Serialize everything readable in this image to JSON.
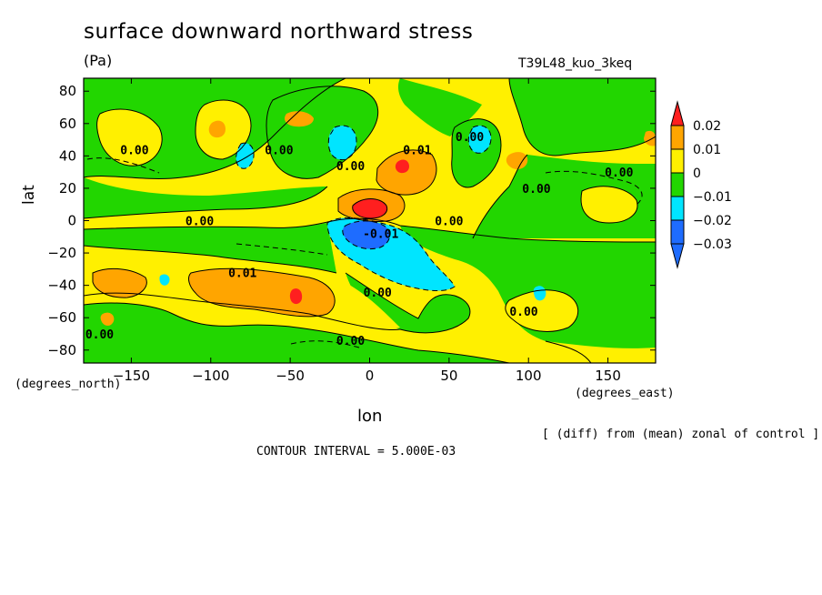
{
  "header": {
    "title": "surface downward northward stress",
    "units": "(Pa)",
    "run_name": "T39L48_kuo_3keq"
  },
  "footer": {
    "contour_interval": "CONTOUR INTERVAL = 5.000E-03",
    "note": "[ (diff) from (mean) zonal of control ]"
  },
  "chart_data": {
    "type": "heatmap",
    "title": "surface downward northward stress",
    "subtitle": "(Pa)",
    "xlabel": "lon",
    "ylabel": "lat",
    "x_unit_label": "(degrees_east)",
    "y_unit_label": "(degrees_north)",
    "xlim": [
      -180,
      180
    ],
    "ylim": [
      -88,
      88
    ],
    "x_ticks": [
      -150,
      -100,
      -50,
      0,
      50,
      100,
      150
    ],
    "x_tick_labels": [
      "−150",
      "−100",
      "−50",
      "0",
      "50",
      "100",
      "150"
    ],
    "y_ticks": [
      80,
      60,
      40,
      20,
      0,
      -20,
      -40,
      -60,
      -80
    ],
    "y_tick_labels": [
      "80",
      "60",
      "40",
      "20",
      "0",
      "−20",
      "−40",
      "−60",
      "−80"
    ],
    "colorbar": {
      "levels": [
        -0.03,
        -0.02,
        -0.01,
        0,
        0.01,
        0.02
      ],
      "labels": [
        "−0.03",
        "−0.02",
        "−0.01",
        "0",
        "0.01",
        "0.02"
      ],
      "colors": [
        "#1e6cff",
        "#00e5ff",
        "#22d600",
        "#fff000",
        "#ffa500",
        "#ff1f1f"
      ],
      "bins": [
        {
          "range": "< -0.03",
          "color": "#1e6cff"
        },
        {
          "range": "-0.03 to -0.02",
          "color": "#1e6cff"
        },
        {
          "range": "-0.02 to -0.01",
          "color": "#00e5ff"
        },
        {
          "range": "-0.01 to 0",
          "color": "#22d600"
        },
        {
          "range": "0 to 0.01",
          "color": "#fff000"
        },
        {
          "range": "0.01 to 0.02",
          "color": "#ffa500"
        },
        {
          "range": "> 0.02",
          "color": "#ff1f1f"
        }
      ]
    },
    "contour_labels": [
      {
        "text": "0.00",
        "lon": -148,
        "lat": 44
      },
      {
        "text": "0.00",
        "lon": -57,
        "lat": 44
      },
      {
        "text": "0.00",
        "lon": -12,
        "lat": 34
      },
      {
        "text": "0.01",
        "lon": 30,
        "lat": 44
      },
      {
        "text": "0.00",
        "lon": 63,
        "lat": 52
      },
      {
        "text": "0.00",
        "lon": 105,
        "lat": 20
      },
      {
        "text": "0.00",
        "lon": 157,
        "lat": 30
      },
      {
        "text": "0.00",
        "lon": -107,
        "lat": 0
      },
      {
        "text": "0.00",
        "lon": 50,
        "lat": 0
      },
      {
        "text": "-0.01",
        "lon": 7,
        "lat": -8
      },
      {
        "text": "0.01",
        "lon": -80,
        "lat": -32
      },
      {
        "text": "0.00",
        "lon": 5,
        "lat": -44
      },
      {
        "text": "0.00",
        "lon": -170,
        "lat": -70
      },
      {
        "text": "0.00",
        "lon": -12,
        "lat": -74
      },
      {
        "text": "0.00",
        "lon": 97,
        "lat": -56
      }
    ],
    "features": [
      {
        "sign": "positive",
        "max_value": 0.02,
        "lon": 0,
        "lat": 5,
        "description_value": "peak > 0.02"
      },
      {
        "sign": "negative",
        "min_value": -0.03,
        "lon": 0,
        "lat": -10,
        "description_value": "peak < -0.03"
      },
      {
        "sign": "negative",
        "value": -0.015,
        "lon": 20,
        "lat": -30
      },
      {
        "sign": "positive",
        "value": 0.012,
        "lon": -50,
        "lat": -44
      }
    ],
    "grid": false,
    "legend_placement": "right"
  }
}
